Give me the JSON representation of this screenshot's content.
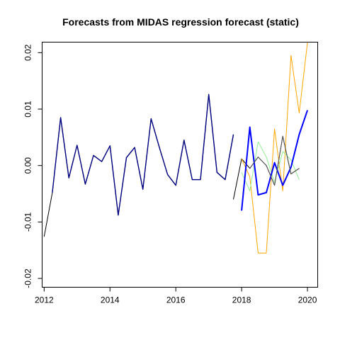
{
  "chart_data": {
    "type": "line",
    "title": "Forecasts from MIDAS regression forecast (static)",
    "xlabel": "",
    "ylabel": "",
    "xlim": [
      2011.95,
      2020.3
    ],
    "ylim": [
      -0.0215,
      0.0218
    ],
    "x_ticks": [
      2012,
      2014,
      2016,
      2018,
      2020
    ],
    "x_tick_labels": [
      "2012",
      "2014",
      "2016",
      "2018",
      "2020"
    ],
    "y_ticks": [
      -0.02,
      -0.01,
      0.0,
      0.01,
      0.02
    ],
    "y_tick_labels": [
      "-0.02",
      "-0.01",
      "0.00",
      "0.01",
      "0.02"
    ],
    "grid": false,
    "legend": "none",
    "series": [
      {
        "color": "#000000",
        "width": 1,
        "points": [
          [
            2012.0,
            -0.0126
          ],
          [
            2012.25,
            -0.0048
          ],
          [
            2012.5,
            0.0085
          ],
          [
            2012.75,
            -0.0022
          ],
          [
            2013.0,
            0.0036
          ],
          [
            2013.25,
            -0.0033
          ],
          [
            2013.5,
            0.0018
          ],
          [
            2013.75,
            0.0007
          ],
          [
            2014.0,
            0.0035
          ],
          [
            2014.25,
            -0.0088
          ],
          [
            2014.5,
            0.0014
          ],
          [
            2014.75,
            0.0032
          ],
          [
            2015.0,
            -0.0042
          ],
          [
            2015.25,
            0.0083
          ],
          [
            2015.5,
            0.0032
          ],
          [
            2015.75,
            -0.0016
          ],
          [
            2016.0,
            -0.0035
          ],
          [
            2016.25,
            0.0045
          ],
          [
            2016.5,
            -0.0025
          ],
          [
            2016.75,
            -0.0025
          ],
          [
            2017.0,
            0.0126
          ],
          [
            2017.25,
            -0.0012
          ],
          [
            2017.5,
            -0.0025
          ],
          [
            2017.75,
            0.0055
          ],
          null,
          [
            2017.75,
            -0.006
          ],
          [
            2018.0,
            0.0012
          ],
          [
            2018.25,
            -0.0005
          ],
          [
            2018.5,
            0.0015
          ],
          [
            2018.75,
            0.0
          ],
          [
            2019.0,
            -0.0035
          ],
          [
            2019.25,
            0.0052
          ],
          [
            2019.5,
            -0.0015
          ],
          [
            2019.75,
            -0.0005
          ]
        ]
      },
      {
        "color": "#000080",
        "width": 1.4,
        "points": [
          [
            2012.25,
            -0.0048
          ],
          [
            2012.5,
            0.0085
          ],
          [
            2012.75,
            -0.0022
          ],
          [
            2013.0,
            0.0036
          ],
          [
            2013.25,
            -0.0033
          ],
          [
            2013.5,
            0.0018
          ],
          [
            2013.75,
            0.0007
          ],
          [
            2014.0,
            0.0035
          ],
          [
            2014.25,
            -0.0088
          ],
          [
            2014.5,
            0.0014
          ],
          [
            2014.75,
            0.0032
          ],
          [
            2015.0,
            -0.0042
          ],
          [
            2015.25,
            0.0083
          ],
          [
            2015.5,
            0.0032
          ],
          [
            2015.75,
            -0.0016
          ],
          [
            2016.0,
            -0.0035
          ],
          [
            2016.25,
            0.0045
          ],
          [
            2016.5,
            -0.0025
          ],
          [
            2016.75,
            -0.0025
          ],
          [
            2017.0,
            0.0126
          ],
          [
            2017.25,
            -0.0012
          ],
          [
            2017.5,
            -0.0025
          ],
          [
            2017.75,
            0.0055
          ]
        ]
      },
      {
        "color": "#FFA500",
        "width": 1,
        "points": [
          [
            2018.0,
            0.0012
          ],
          [
            2018.25,
            -0.002
          ],
          [
            2018.5,
            -0.0155
          ],
          [
            2018.75,
            -0.0155
          ],
          [
            2019.0,
            0.0065
          ],
          [
            2019.25,
            -0.0045
          ],
          [
            2019.5,
            0.0195
          ],
          [
            2019.75,
            0.0093
          ],
          [
            2020.0,
            0.0218
          ]
        ]
      },
      {
        "color": "#90EE90",
        "width": 1,
        "points": [
          [
            2018.0,
            -0.0012
          ],
          [
            2018.25,
            -0.0045
          ],
          [
            2018.5,
            0.0042
          ],
          [
            2018.75,
            0.0015
          ],
          [
            2019.0,
            -0.003
          ],
          [
            2019.25,
            0.0025
          ],
          [
            2019.5,
            0.001
          ],
          [
            2019.75,
            -0.0025
          ]
        ]
      },
      {
        "color": "#0000FF",
        "width": 2,
        "points": [
          [
            2018.0,
            -0.008
          ],
          [
            2018.25,
            0.0068
          ],
          [
            2018.5,
            -0.0052
          ],
          [
            2018.75,
            -0.0048
          ],
          [
            2019.0,
            0.0005
          ],
          [
            2019.25,
            -0.0035
          ],
          [
            2019.5,
            -0.0003
          ],
          [
            2019.75,
            0.0055
          ],
          [
            2020.0,
            0.0098
          ]
        ]
      },
      {
        "color": "#555555",
        "width": 1,
        "points": [
          [
            2018.25,
            -0.0005
          ],
          [
            2018.5,
            0.0015
          ],
          [
            2018.75,
            0.0
          ],
          [
            2019.0,
            -0.0035
          ],
          [
            2019.25,
            0.0052
          ],
          [
            2019.5,
            -0.0015
          ],
          [
            2019.75,
            -0.0005
          ]
        ]
      }
    ]
  }
}
